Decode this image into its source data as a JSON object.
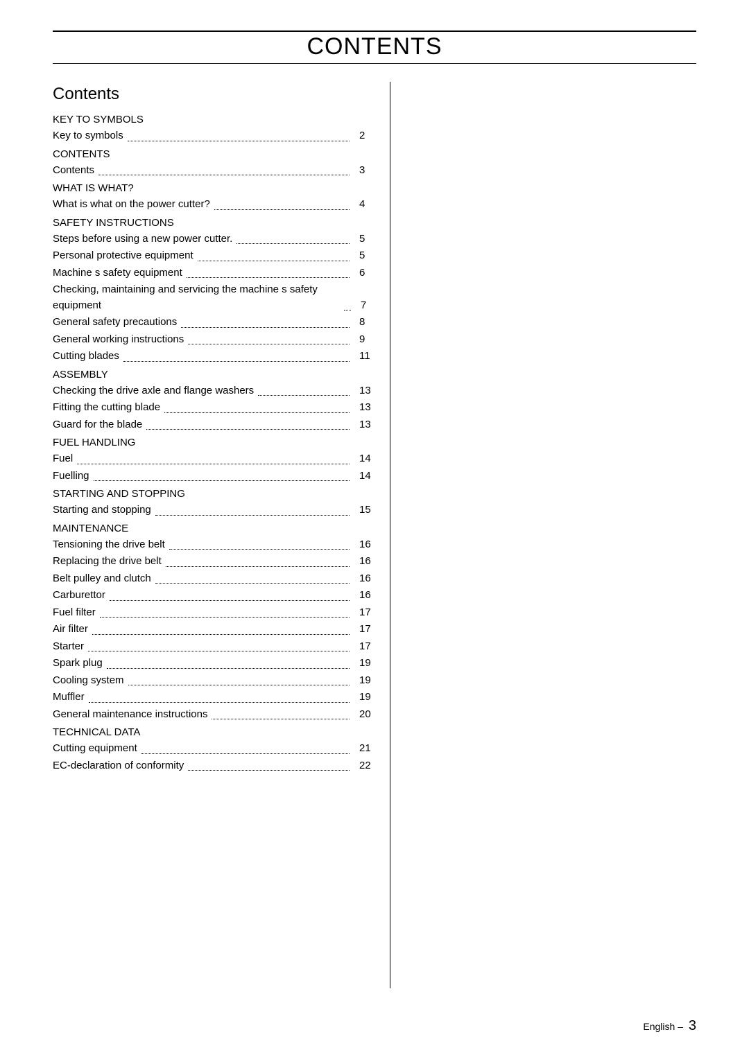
{
  "page_title": "CONTENTS",
  "subheading": "Contents",
  "footer_lang": "English",
  "footer_sep": "–",
  "footer_page": "3",
  "sections": [
    {
      "label": "KEY TO SYMBOLS",
      "items": [
        {
          "t": "Key to symbols",
          "p": "2"
        }
      ]
    },
    {
      "label": "CONTENTS",
      "items": [
        {
          "t": "Contents",
          "p": "3"
        }
      ]
    },
    {
      "label": "WHAT IS WHAT?",
      "items": [
        {
          "t": "What is what on the power cutter?",
          "p": "4"
        }
      ]
    },
    {
      "label": "SAFETY INSTRUCTIONS",
      "items": [
        {
          "t": "Steps before using a new power cutter.",
          "p": "5"
        },
        {
          "t": "Personal protective equipment",
          "p": "5"
        },
        {
          "t": "Machine s safety equipment",
          "p": "6"
        },
        {
          "t": "Checking, maintaining and servicing the machine s safety equipment",
          "p": "7"
        },
        {
          "t": "General safety precautions",
          "p": "8"
        },
        {
          "t": "General working instructions",
          "p": "9"
        },
        {
          "t": "Cutting blades",
          "p": "11"
        }
      ]
    },
    {
      "label": "ASSEMBLY",
      "items": [
        {
          "t": "Checking the drive axle and flange washers",
          "p": "13"
        },
        {
          "t": "Fitting the cutting blade",
          "p": "13"
        },
        {
          "t": "Guard for the blade",
          "p": "13"
        }
      ]
    },
    {
      "label": "FUEL HANDLING",
      "items": [
        {
          "t": "Fuel",
          "p": "14"
        },
        {
          "t": "Fuelling",
          "p": "14"
        }
      ]
    },
    {
      "label": "STARTING AND STOPPING",
      "items": [
        {
          "t": "Starting and stopping",
          "p": "15"
        }
      ]
    },
    {
      "label": "MAINTENANCE",
      "items": [
        {
          "t": "Tensioning the drive belt",
          "p": "16"
        },
        {
          "t": "Replacing the drive belt",
          "p": "16"
        },
        {
          "t": "Belt pulley and clutch",
          "p": "16"
        },
        {
          "t": "Carburettor",
          "p": "16"
        },
        {
          "t": "Fuel filter",
          "p": "17"
        },
        {
          "t": "Air filter",
          "p": "17"
        },
        {
          "t": "Starter",
          "p": "17"
        },
        {
          "t": "Spark plug",
          "p": "19"
        },
        {
          "t": "Cooling system",
          "p": "19"
        },
        {
          "t": "Muffler",
          "p": "19"
        },
        {
          "t": "General maintenance instructions",
          "p": "20"
        }
      ]
    },
    {
      "label": "TECHNICAL DATA",
      "items": [
        {
          "t": "Cutting equipment",
          "p": "21"
        },
        {
          "t": "EC-declaration of conformity",
          "p": "22"
        }
      ]
    }
  ]
}
